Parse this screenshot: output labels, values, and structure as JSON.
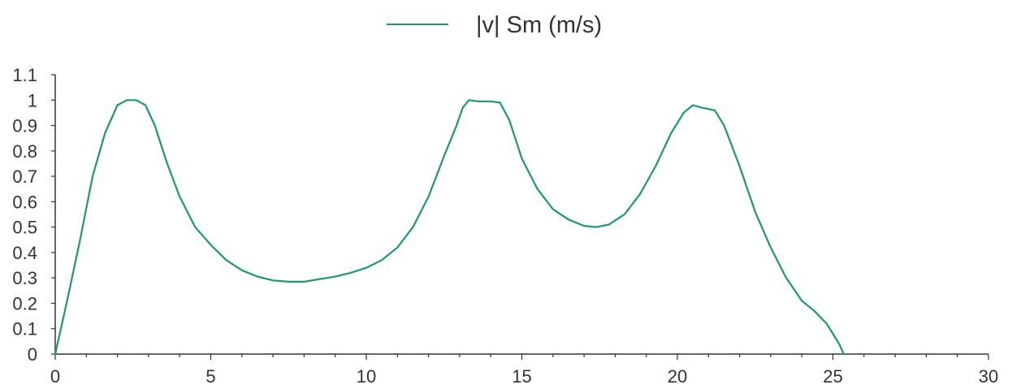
{
  "chart_data": {
    "type": "line",
    "title": "",
    "xlabel": "",
    "ylabel": "",
    "xlim": [
      0,
      30
    ],
    "ylim": [
      0,
      1.1
    ],
    "x_ticks": [
      "0",
      "5",
      "10",
      "15",
      "20",
      "25",
      "30"
    ],
    "y_ticks": [
      "0",
      "0.1",
      "0.2",
      "0.3",
      "0.4",
      "0.5",
      "0.6",
      "0.7",
      "0.8",
      "0.9",
      "1",
      "1.1"
    ],
    "grid": false,
    "legend_position": "top-center",
    "series": [
      {
        "name": "|v| Sm (m/s)",
        "color": "#1e9670",
        "x": [
          0,
          0.4,
          0.8,
          1.2,
          1.6,
          2.0,
          2.3,
          2.6,
          2.9,
          3.2,
          3.6,
          4.0,
          4.5,
          5.0,
          5.5,
          6.0,
          6.5,
          7.0,
          7.5,
          8.0,
          8.5,
          9.0,
          9.5,
          10.0,
          10.5,
          11.0,
          11.5,
          12.0,
          12.5,
          12.9,
          13.1,
          13.3,
          13.6,
          14.0,
          14.3,
          14.6,
          15.0,
          15.5,
          16.0,
          16.5,
          17.0,
          17.4,
          17.8,
          18.3,
          18.8,
          19.3,
          19.8,
          20.2,
          20.5,
          20.8,
          21.2,
          21.5,
          22.0,
          22.5,
          23.0,
          23.5,
          24.0,
          24.4,
          24.8,
          25.0,
          25.2,
          25.35
        ],
        "values": [
          0.0,
          0.22,
          0.45,
          0.7,
          0.87,
          0.98,
          1.0,
          1.0,
          0.98,
          0.9,
          0.75,
          0.62,
          0.5,
          0.43,
          0.37,
          0.33,
          0.305,
          0.29,
          0.285,
          0.285,
          0.295,
          0.305,
          0.32,
          0.34,
          0.37,
          0.42,
          0.5,
          0.62,
          0.78,
          0.9,
          0.97,
          1.0,
          0.995,
          0.995,
          0.99,
          0.92,
          0.77,
          0.65,
          0.57,
          0.53,
          0.505,
          0.5,
          0.51,
          0.55,
          0.63,
          0.74,
          0.87,
          0.95,
          0.98,
          0.97,
          0.96,
          0.9,
          0.74,
          0.56,
          0.42,
          0.3,
          0.21,
          0.17,
          0.12,
          0.08,
          0.04,
          0.0
        ]
      }
    ]
  }
}
